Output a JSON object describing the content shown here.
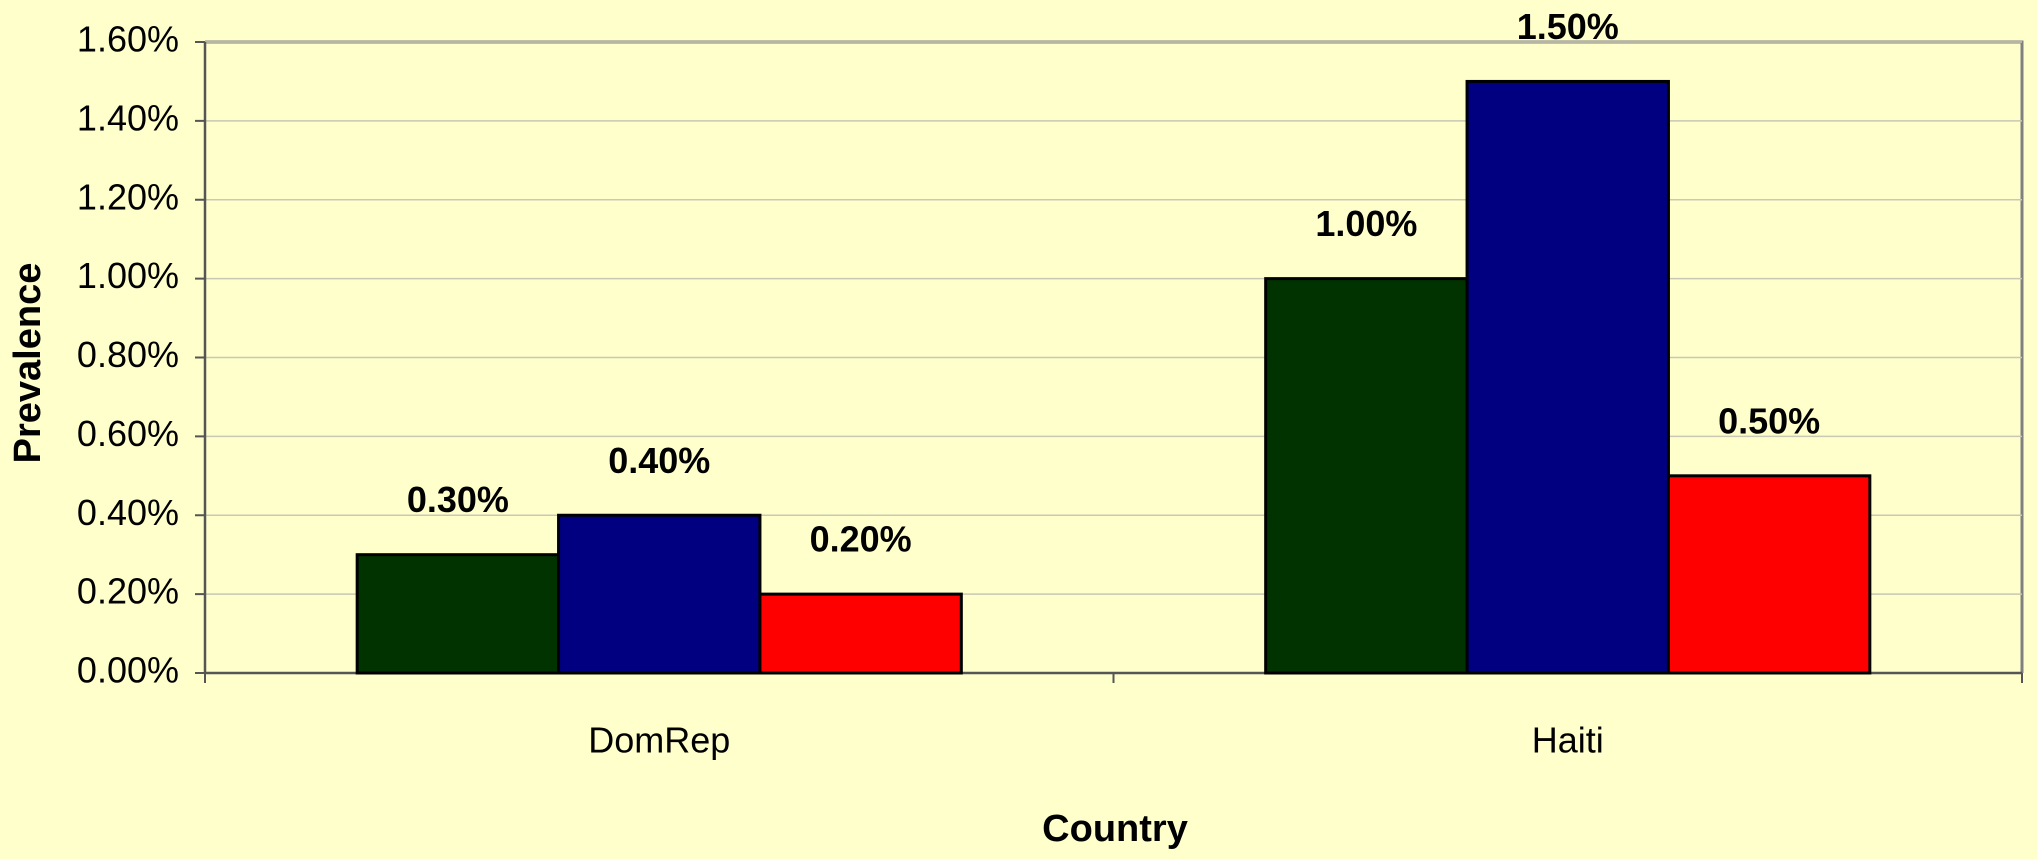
{
  "chart_data": {
    "type": "bar",
    "xlabel": "Country",
    "ylabel": "Prevalence",
    "categories": [
      "DomRep",
      "Haiti"
    ],
    "series": [
      {
        "color": "#003300",
        "values": [
          0.3,
          1.0
        ],
        "value_labels": [
          "0.30%",
          "1.00%"
        ]
      },
      {
        "color": "#000080",
        "values": [
          0.4,
          1.5
        ],
        "value_labels": [
          "0.40%",
          "1.50%"
        ]
      },
      {
        "color": "#ff0000",
        "values": [
          0.2,
          0.5
        ],
        "value_labels": [
          "0.20%",
          "0.50%"
        ]
      }
    ],
    "ylim": [
      0,
      1.6
    ],
    "yticks": [
      {
        "value": 0,
        "label": "0.00%"
      },
      {
        "value": 0.2,
        "label": "0.20%"
      },
      {
        "value": 0.4,
        "label": "0.40%"
      },
      {
        "value": 0.6,
        "label": "0.60%"
      },
      {
        "value": 0.8,
        "label": "0.80%"
      },
      {
        "value": 1.0,
        "label": "1.00%"
      },
      {
        "value": 1.2,
        "label": "1.20%"
      },
      {
        "value": 1.4,
        "label": "1.40%"
      },
      {
        "value": 1.6,
        "label": "1.60%"
      }
    ],
    "grid": true
  }
}
